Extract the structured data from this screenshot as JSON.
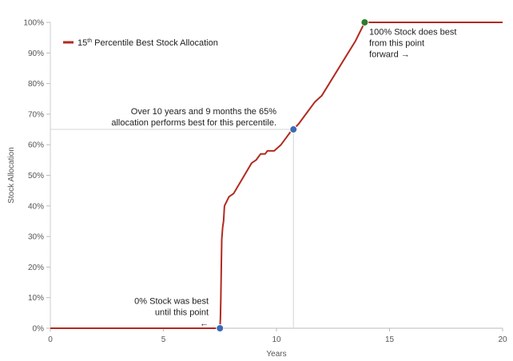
{
  "chart_data": {
    "type": "line",
    "title": "",
    "xlabel": "Years",
    "ylabel": "Stock Allocation",
    "xlim": [
      0,
      20
    ],
    "ylim": [
      0,
      100
    ],
    "x_ticks": [
      0,
      5,
      10,
      15,
      20
    ],
    "y_ticks": [
      0,
      10,
      20,
      30,
      40,
      50,
      60,
      70,
      80,
      90,
      100
    ],
    "y_tick_suffix": "%",
    "grid": false,
    "legend": {
      "placement": "top-left",
      "entries": [
        {
          "label_main": "15",
          "label_sup": "th",
          "label_rest": " Percentile Best Stock Allocation",
          "color": "#b22a1f"
        }
      ]
    },
    "series": [
      {
        "name": "15th Percentile Best Stock Allocation",
        "color": "#b22a1f",
        "points": [
          [
            0,
            0
          ],
          [
            7.5,
            0
          ],
          [
            7.52,
            3
          ],
          [
            7.54,
            10
          ],
          [
            7.56,
            20
          ],
          [
            7.58,
            29
          ],
          [
            7.62,
            33
          ],
          [
            7.66,
            35
          ],
          [
            7.7,
            40
          ],
          [
            7.9,
            43
          ],
          [
            8.1,
            44
          ],
          [
            8.5,
            49
          ],
          [
            8.9,
            54
          ],
          [
            9.1,
            55
          ],
          [
            9.3,
            57
          ],
          [
            9.5,
            57
          ],
          [
            9.6,
            58
          ],
          [
            9.9,
            58
          ],
          [
            10.2,
            60
          ],
          [
            10.4,
            62
          ],
          [
            10.6,
            64
          ],
          [
            10.75,
            65
          ],
          [
            11.0,
            67
          ],
          [
            11.3,
            70
          ],
          [
            11.7,
            74
          ],
          [
            12.0,
            76
          ],
          [
            12.5,
            82
          ],
          [
            13.0,
            88
          ],
          [
            13.5,
            94
          ],
          [
            13.9,
            100
          ],
          [
            20,
            100
          ]
        ]
      }
    ],
    "highlight_points": [
      {
        "x": 7.5,
        "y": 0,
        "color": "#3a6bb5"
      },
      {
        "x": 10.75,
        "y": 65,
        "color": "#3a6bb5"
      },
      {
        "x": 13.9,
        "y": 100,
        "color": "#2e7a2e"
      }
    ],
    "reference_lines": [
      {
        "from": [
          0,
          65
        ],
        "to": [
          10.75,
          65
        ]
      },
      {
        "from": [
          10.75,
          0
        ],
        "to": [
          10.75,
          65
        ]
      }
    ],
    "annotations": [
      {
        "id": "start",
        "lines": [
          "0% Stock was best",
          "until this point",
          "←"
        ],
        "x": 7.0,
        "y": 8,
        "anchor": "end"
      },
      {
        "id": "mid",
        "lines": [
          "Over 10 years and 9 months the 65%",
          "allocation performs best for this percentile."
        ],
        "x": 10.0,
        "y": 70,
        "anchor": "end"
      },
      {
        "id": "end",
        "lines": [
          "100% Stock does best",
          "from this point",
          "forward →"
        ],
        "x": 14.1,
        "y": 96,
        "anchor": "start"
      }
    ]
  }
}
